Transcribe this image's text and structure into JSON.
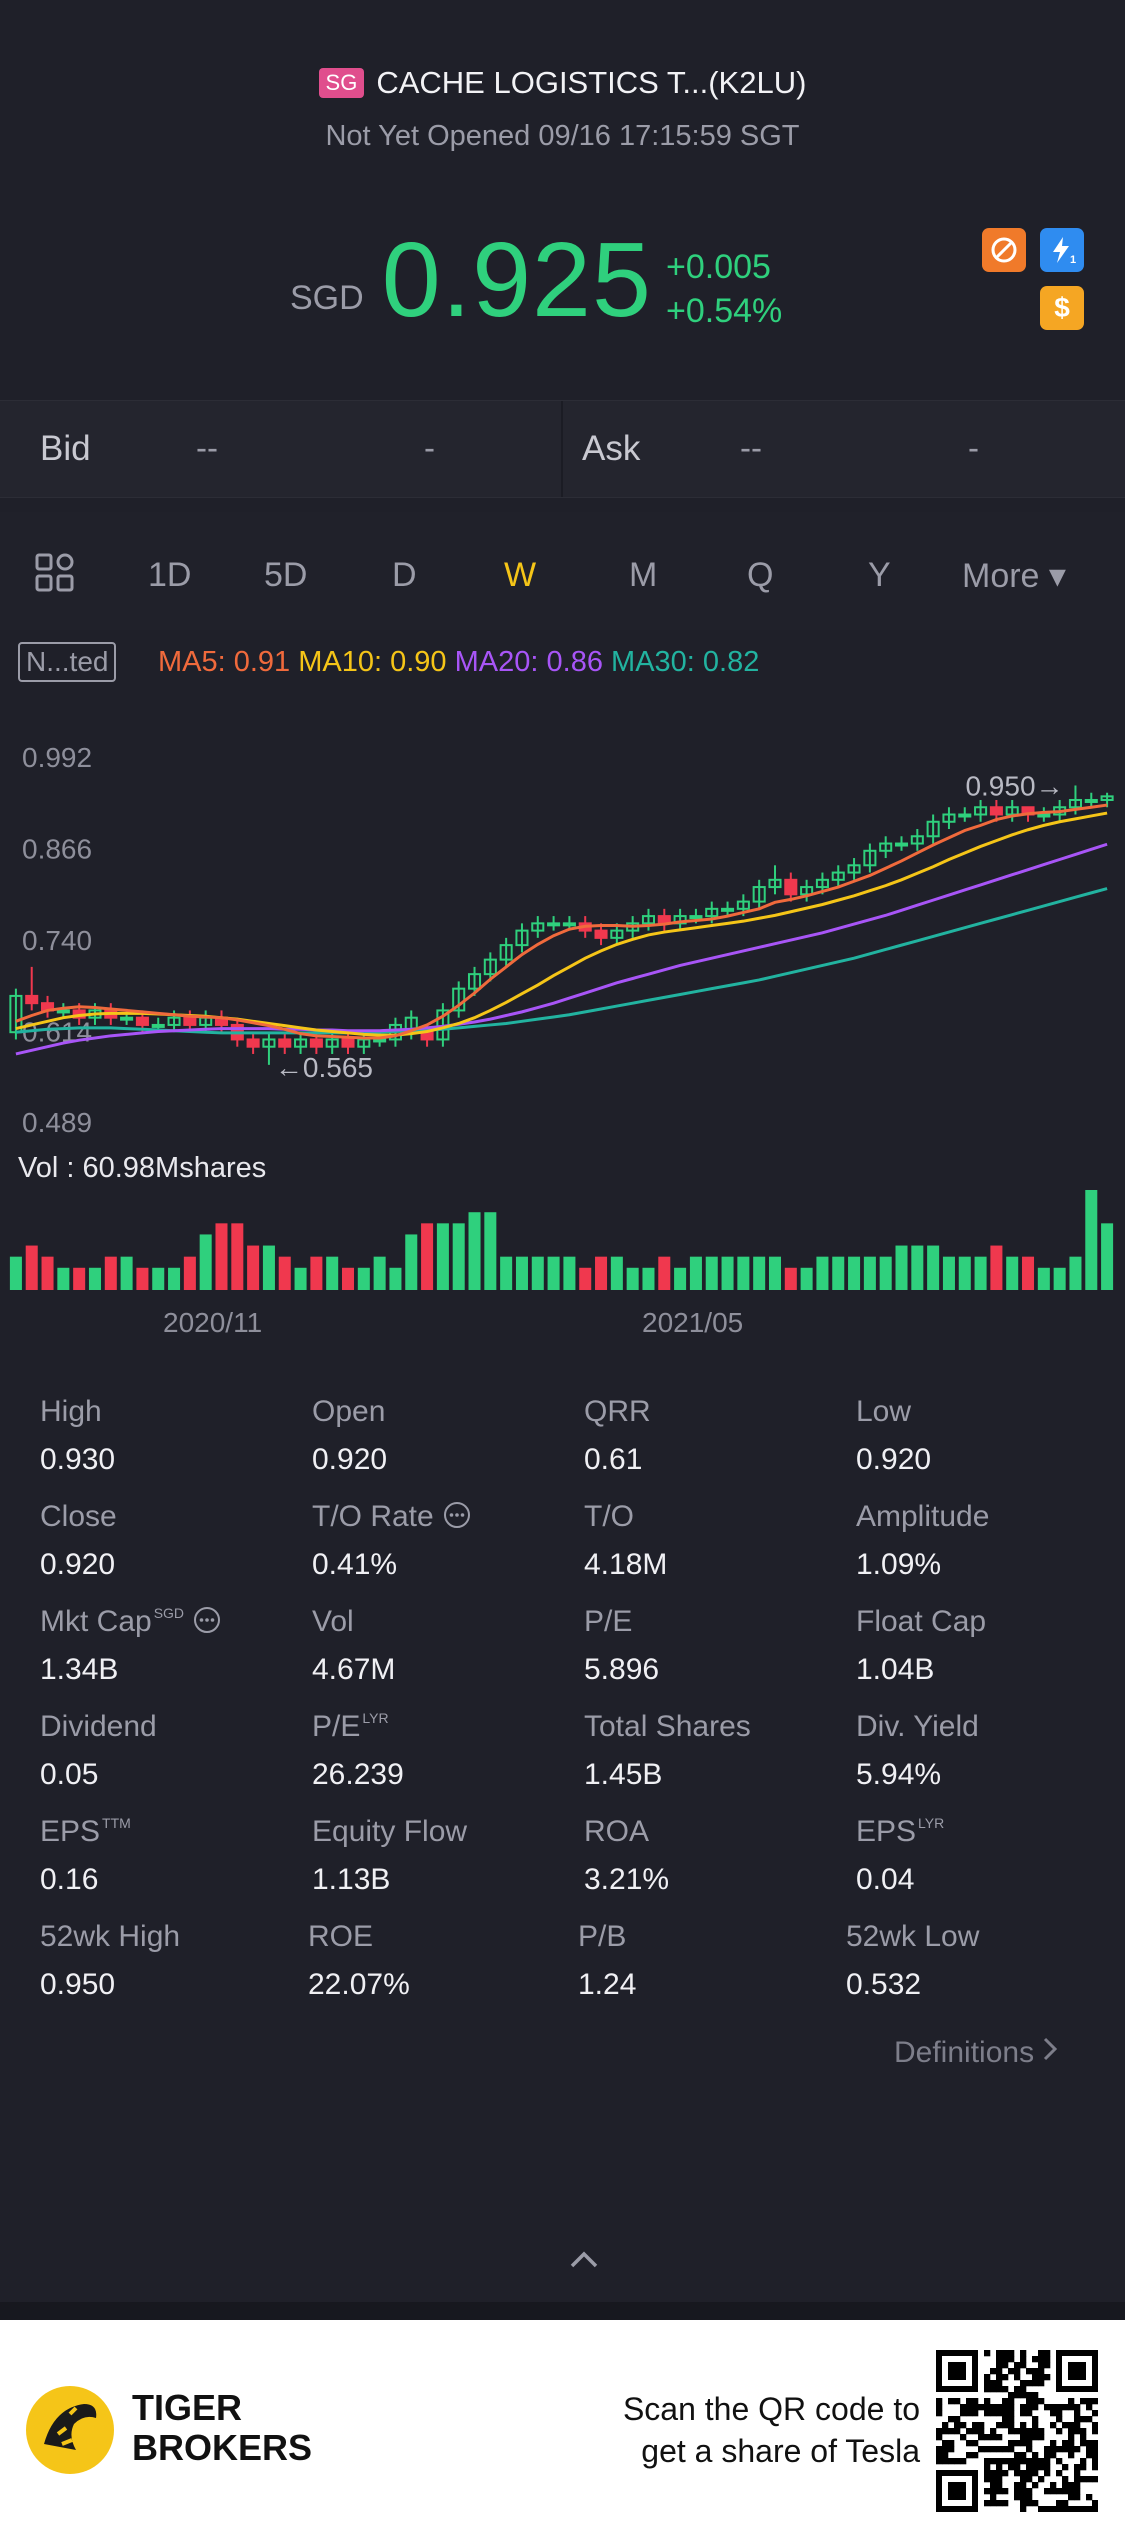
{
  "header": {
    "market_badge": "SG",
    "title": "CACHE LOGISTICS T...(K2LU)",
    "status": "Not Yet Opened 09/16 17:15:59 SGT",
    "currency": "SGD",
    "price": "0.925",
    "change": "+0.005",
    "change_pct": "+0.54%",
    "icons": [
      "no-short-icon",
      "lightning-1-icon",
      "dollar-icon"
    ],
    "colors": {
      "up": "#2fd07d",
      "down": "#f0384e"
    }
  },
  "bidask": {
    "bid_label": "Bid",
    "bid_price": "--",
    "bid_size": "-",
    "ask_label": "Ask",
    "ask_price": "--",
    "ask_size": "-"
  },
  "tabs": {
    "grid_icon": "grid-icon",
    "items": [
      "1D",
      "5D",
      "D",
      "W",
      "M",
      "Q",
      "Y",
      "More ▾"
    ],
    "active": "W"
  },
  "indicators": {
    "adjust_badge": "N...ted",
    "ma5": "MA5: 0.91",
    "ma10": "MA10: 0.90",
    "ma20": "MA20: 0.86",
    "ma30": "MA30: 0.82",
    "colors": {
      "ma5": "#f06a3c",
      "ma10": "#f5c518",
      "ma20": "#a855f7",
      "ma30": "#22b3a0"
    }
  },
  "chart_data": {
    "type": "candlestick",
    "period": "W",
    "y_ticks": [
      "0.992",
      "0.866",
      "0.740",
      "0.614",
      "0.489"
    ],
    "ylim": [
      0.489,
      0.992
    ],
    "x_ticks": [
      "2020/11",
      "2021/05"
    ],
    "annotations": {
      "high": "0.950",
      "low": "0.565"
    },
    "volume_label": "Vol  : 60.98Mshares",
    "candles": [
      [
        0.61,
        0.66,
        0.6,
        0.67
      ],
      [
        0.66,
        0.65,
        0.64,
        0.7
      ],
      [
        0.65,
        0.64,
        0.63,
        0.66
      ],
      [
        0.64,
        0.64,
        0.63,
        0.65
      ],
      [
        0.64,
        0.63,
        0.62,
        0.65
      ],
      [
        0.63,
        0.64,
        0.62,
        0.65
      ],
      [
        0.64,
        0.63,
        0.62,
        0.65
      ],
      [
        0.63,
        0.63,
        0.62,
        0.64
      ],
      [
        0.63,
        0.62,
        0.61,
        0.64
      ],
      [
        0.62,
        0.62,
        0.61,
        0.63
      ],
      [
        0.62,
        0.63,
        0.61,
        0.64
      ],
      [
        0.63,
        0.62,
        0.61,
        0.64
      ],
      [
        0.62,
        0.63,
        0.61,
        0.64
      ],
      [
        0.63,
        0.62,
        0.61,
        0.64
      ],
      [
        0.62,
        0.6,
        0.59,
        0.63
      ],
      [
        0.6,
        0.59,
        0.58,
        0.61
      ],
      [
        0.59,
        0.6,
        0.565,
        0.61
      ],
      [
        0.6,
        0.59,
        0.58,
        0.61
      ],
      [
        0.59,
        0.6,
        0.58,
        0.61
      ],
      [
        0.6,
        0.59,
        0.58,
        0.61
      ],
      [
        0.59,
        0.6,
        0.58,
        0.61
      ],
      [
        0.6,
        0.59,
        0.58,
        0.61
      ],
      [
        0.59,
        0.6,
        0.58,
        0.61
      ],
      [
        0.6,
        0.6,
        0.59,
        0.61
      ],
      [
        0.6,
        0.62,
        0.59,
        0.63
      ],
      [
        0.61,
        0.63,
        0.6,
        0.64
      ],
      [
        0.61,
        0.6,
        0.59,
        0.62
      ],
      [
        0.6,
        0.64,
        0.59,
        0.65
      ],
      [
        0.64,
        0.67,
        0.63,
        0.68
      ],
      [
        0.67,
        0.69,
        0.66,
        0.7
      ],
      [
        0.69,
        0.71,
        0.68,
        0.72
      ],
      [
        0.71,
        0.73,
        0.7,
        0.74
      ],
      [
        0.73,
        0.75,
        0.72,
        0.76
      ],
      [
        0.75,
        0.76,
        0.74,
        0.77
      ],
      [
        0.76,
        0.76,
        0.75,
        0.77
      ],
      [
        0.76,
        0.76,
        0.75,
        0.77
      ],
      [
        0.76,
        0.75,
        0.74,
        0.77
      ],
      [
        0.75,
        0.74,
        0.73,
        0.76
      ],
      [
        0.74,
        0.75,
        0.73,
        0.76
      ],
      [
        0.75,
        0.76,
        0.74,
        0.77
      ],
      [
        0.76,
        0.77,
        0.75,
        0.78
      ],
      [
        0.77,
        0.76,
        0.75,
        0.78
      ],
      [
        0.76,
        0.77,
        0.75,
        0.78
      ],
      [
        0.77,
        0.77,
        0.76,
        0.78
      ],
      [
        0.77,
        0.78,
        0.76,
        0.79
      ],
      [
        0.78,
        0.78,
        0.77,
        0.79
      ],
      [
        0.78,
        0.79,
        0.77,
        0.8
      ],
      [
        0.79,
        0.81,
        0.78,
        0.82
      ],
      [
        0.81,
        0.82,
        0.8,
        0.84
      ],
      [
        0.82,
        0.8,
        0.79,
        0.83
      ],
      [
        0.8,
        0.81,
        0.79,
        0.82
      ],
      [
        0.81,
        0.82,
        0.8,
        0.83
      ],
      [
        0.82,
        0.83,
        0.81,
        0.84
      ],
      [
        0.83,
        0.84,
        0.82,
        0.85
      ],
      [
        0.84,
        0.86,
        0.83,
        0.87
      ],
      [
        0.86,
        0.87,
        0.85,
        0.88
      ],
      [
        0.87,
        0.87,
        0.86,
        0.88
      ],
      [
        0.87,
        0.88,
        0.86,
        0.89
      ],
      [
        0.88,
        0.9,
        0.87,
        0.91
      ],
      [
        0.9,
        0.91,
        0.89,
        0.92
      ],
      [
        0.91,
        0.91,
        0.9,
        0.92
      ],
      [
        0.91,
        0.92,
        0.9,
        0.93
      ],
      [
        0.92,
        0.91,
        0.9,
        0.93
      ],
      [
        0.91,
        0.92,
        0.9,
        0.93
      ],
      [
        0.92,
        0.91,
        0.9,
        0.92
      ],
      [
        0.91,
        0.91,
        0.9,
        0.92
      ],
      [
        0.91,
        0.92,
        0.9,
        0.93
      ],
      [
        0.92,
        0.93,
        0.91,
        0.95
      ],
      [
        0.93,
        0.93,
        0.92,
        0.94
      ],
      [
        0.93,
        0.935,
        0.92,
        0.94
      ]
    ],
    "ma5": [
      0.625,
      0.633,
      0.64,
      0.643,
      0.645,
      0.644,
      0.642,
      0.64,
      0.638,
      0.636,
      0.634,
      0.632,
      0.631,
      0.63,
      0.627,
      0.623,
      0.619,
      0.614,
      0.608,
      0.605,
      0.604,
      0.603,
      0.602,
      0.602,
      0.605,
      0.612,
      0.62,
      0.632,
      0.647,
      0.664,
      0.683,
      0.7,
      0.717,
      0.731,
      0.743,
      0.752,
      0.756,
      0.757,
      0.757,
      0.756,
      0.757,
      0.759,
      0.762,
      0.764,
      0.766,
      0.77,
      0.775,
      0.78,
      0.789,
      0.793,
      0.798,
      0.804,
      0.81,
      0.818,
      0.826,
      0.836,
      0.846,
      0.857,
      0.868,
      0.878,
      0.888,
      0.895,
      0.903,
      0.908,
      0.911,
      0.913,
      0.914,
      0.917,
      0.92,
      0.923
    ],
    "ma10": [
      0.615,
      0.62,
      0.625,
      0.63,
      0.633,
      0.635,
      0.636,
      0.636,
      0.636,
      0.635,
      0.634,
      0.633,
      0.632,
      0.63,
      0.628,
      0.625,
      0.622,
      0.619,
      0.616,
      0.613,
      0.611,
      0.609,
      0.607,
      0.606,
      0.606,
      0.608,
      0.611,
      0.616,
      0.622,
      0.63,
      0.64,
      0.651,
      0.663,
      0.675,
      0.688,
      0.7,
      0.712,
      0.722,
      0.731,
      0.738,
      0.744,
      0.748,
      0.751,
      0.754,
      0.757,
      0.76,
      0.763,
      0.767,
      0.771,
      0.776,
      0.781,
      0.786,
      0.792,
      0.798,
      0.805,
      0.812,
      0.82,
      0.829,
      0.838,
      0.848,
      0.857,
      0.866,
      0.874,
      0.882,
      0.889,
      0.895,
      0.9,
      0.904,
      0.908,
      0.912
    ],
    "ma20": [
      0.58,
      0.585,
      0.59,
      0.595,
      0.599,
      0.602,
      0.605,
      0.607,
      0.609,
      0.611,
      0.612,
      0.613,
      0.614,
      0.615,
      0.615,
      0.615,
      0.615,
      0.614,
      0.614,
      0.613,
      0.613,
      0.612,
      0.612,
      0.612,
      0.613,
      0.614,
      0.616,
      0.618,
      0.621,
      0.624,
      0.628,
      0.633,
      0.638,
      0.644,
      0.65,
      0.657,
      0.664,
      0.671,
      0.678,
      0.684,
      0.69,
      0.696,
      0.702,
      0.707,
      0.712,
      0.717,
      0.722,
      0.727,
      0.732,
      0.737,
      0.742,
      0.747,
      0.753,
      0.759,
      0.765,
      0.771,
      0.778,
      0.785,
      0.792,
      0.799,
      0.806,
      0.813,
      0.82,
      0.827,
      0.834,
      0.841,
      0.848,
      0.855,
      0.862,
      0.869
    ],
    "ma30": [
      0.61,
      0.612,
      0.614,
      0.615,
      0.616,
      0.616,
      0.616,
      0.615,
      0.614,
      0.613,
      0.612,
      0.611,
      0.61,
      0.609,
      0.609,
      0.609,
      0.609,
      0.609,
      0.609,
      0.609,
      0.609,
      0.609,
      0.609,
      0.61,
      0.611,
      0.612,
      0.613,
      0.614,
      0.616,
      0.618,
      0.62,
      0.622,
      0.625,
      0.628,
      0.631,
      0.634,
      0.638,
      0.642,
      0.646,
      0.65,
      0.654,
      0.658,
      0.662,
      0.666,
      0.67,
      0.674,
      0.678,
      0.682,
      0.687,
      0.692,
      0.697,
      0.702,
      0.707,
      0.712,
      0.718,
      0.724,
      0.73,
      0.736,
      0.742,
      0.748,
      0.754,
      0.76,
      0.766,
      0.772,
      0.778,
      0.784,
      0.79,
      0.796,
      0.802,
      0.808
    ],
    "volume": [
      3,
      4,
      3,
      2,
      2,
      2,
      3,
      3,
      2,
      2,
      2,
      3,
      5,
      6,
      6,
      4,
      4,
      3,
      2,
      3,
      3,
      2,
      2,
      3,
      2,
      5,
      6,
      6,
      6,
      7,
      7,
      3,
      3,
      3,
      3,
      3,
      2,
      3,
      3,
      2,
      2,
      3,
      2,
      3,
      3,
      3,
      3,
      3,
      3,
      2,
      2,
      3,
      3,
      3,
      3,
      3,
      4,
      4,
      4,
      3,
      3,
      3,
      4,
      3,
      3,
      2,
      2,
      3,
      9,
      6
    ]
  },
  "stats": [
    [
      {
        "label": "High",
        "value": "0.930"
      },
      {
        "label": "Open",
        "value": "0.920"
      },
      {
        "label": "QRR",
        "value": "0.61"
      },
      {
        "label": "Low",
        "value": "0.920"
      }
    ],
    [
      {
        "label": "Close",
        "value": "0.920"
      },
      {
        "label": "T/O Rate",
        "value": "0.41%",
        "info": true
      },
      {
        "label": "T/O",
        "value": "4.18M"
      },
      {
        "label": "Amplitude",
        "value": "1.09%"
      }
    ],
    [
      {
        "label": "Mkt Cap",
        "value": "1.34B",
        "sup": "SGD",
        "info": true
      },
      {
        "label": "Vol",
        "value": "4.67M"
      },
      {
        "label": "P/E",
        "value": "5.896"
      },
      {
        "label": "Float Cap",
        "value": "1.04B"
      }
    ],
    [
      {
        "label": "Dividend",
        "value": "0.05"
      },
      {
        "label": "P/E",
        "value": "26.239",
        "sup": "LYR"
      },
      {
        "label": "Total Shares",
        "value": "1.45B"
      },
      {
        "label": "Div. Yield",
        "value": "5.94%"
      }
    ],
    [
      {
        "label": "EPS",
        "value": "0.16",
        "sup": "TTM"
      },
      {
        "label": "Equity Flow",
        "value": "1.13B"
      },
      {
        "label": "ROA",
        "value": "3.21%"
      },
      {
        "label": "EPS",
        "value": "0.04",
        "sup": "LYR"
      }
    ],
    [
      {
        "label": "52wk High",
        "value": "0.950"
      },
      {
        "label": "ROE",
        "value": "22.07%"
      },
      {
        "label": "P/B",
        "value": "1.24"
      },
      {
        "label": "52wk Low",
        "value": "0.532"
      }
    ]
  ],
  "definitions_link": "Definitions",
  "footer": {
    "brand_line1": "TIGER",
    "brand_line2": "BROKERS",
    "cta_line1": "Scan the QR code to",
    "cta_line2": "get a share of Tesla"
  }
}
